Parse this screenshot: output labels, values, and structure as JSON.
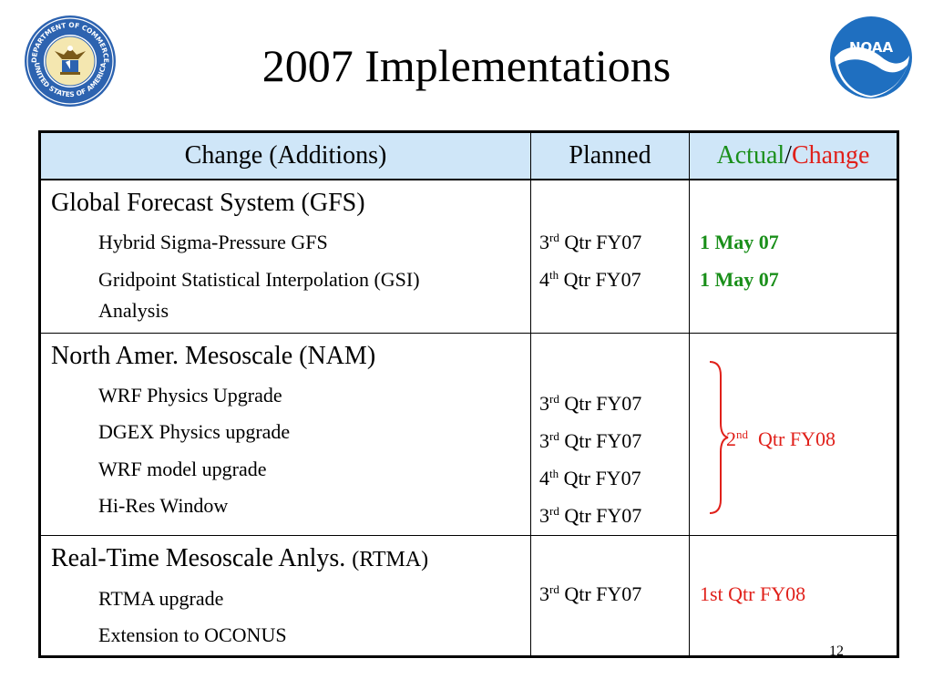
{
  "title": "2007 Implementations",
  "logos": {
    "left": {
      "icon": "department-of-commerce-seal",
      "text_top": "DEPARTMENT OF COMMERCE",
      "text_bottom": "UNITED STATES OF AMERICA"
    },
    "right": {
      "icon": "noaa-logo",
      "text": "NOAA"
    }
  },
  "colors": {
    "header_bg": "#cfe6f8",
    "actual": "#1a8f1a",
    "change": "#e0201a",
    "noaa_blue": "#1f6fc0"
  },
  "table": {
    "headers": {
      "change": "Change (Additions)",
      "planned": "Planned",
      "actual": "Actual",
      "separator": "/",
      "change_word": "Change"
    },
    "sections": [
      {
        "title": "Global Forecast System (GFS)",
        "items": [
          {
            "name": "Hybrid Sigma-Pressure GFS",
            "planned_ord": "3",
            "planned_sup": "rd",
            "planned_rest": " Qtr FY07",
            "actual": "1 May 07"
          },
          {
            "name_line1": "Gridpoint Statistical Interpolation (GSI)",
            "name_line2": "Analysis",
            "planned_ord": "4",
            "planned_sup": "th",
            "planned_rest": " Qtr FY07",
            "actual": "1 May 07"
          }
        ]
      },
      {
        "title": "North Amer. Mesoscale (NAM)",
        "items": [
          {
            "name": "WRF Physics Upgrade",
            "planned_ord": "3",
            "planned_sup": "rd",
            "planned_rest": " Qtr FY07"
          },
          {
            "name": "DGEX Physics upgrade",
            "planned_ord": "3",
            "planned_sup": "rd",
            "planned_rest": " Qtr FY07"
          },
          {
            "name": "WRF model upgrade",
            "planned_ord": "4",
            "planned_sup": "th",
            "planned_rest": " Qtr FY07"
          },
          {
            "name": "Hi-Res Window",
            "planned_ord": "3",
            "planned_sup": "rd",
            "planned_rest": " Qtr FY07"
          }
        ],
        "change": {
          "ord": "2",
          "sup": "nd",
          "rest": "  Qtr FY08"
        }
      },
      {
        "title": "Real-Time Mesoscale Anlys.",
        "title_abbr": "(RTMA)",
        "items": [
          {
            "name": "RTMA upgrade"
          },
          {
            "name": "Extension to OCONUS"
          }
        ],
        "planned_ord": "3",
        "planned_sup": "rd",
        "planned_rest": " Qtr FY07",
        "change": "1st Qtr FY08"
      }
    ]
  },
  "page_number": "12"
}
